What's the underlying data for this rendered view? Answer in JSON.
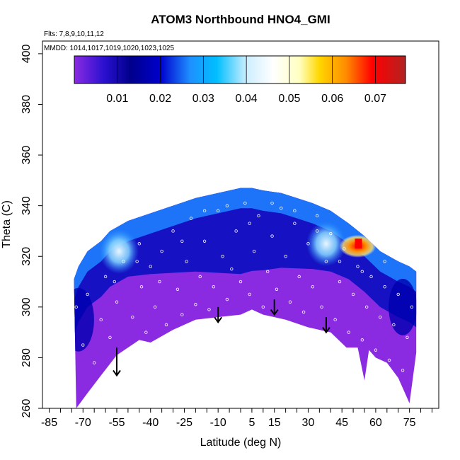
{
  "chart_data": {
    "type": "heatmap",
    "title": "ATOM3 Northbound HNO4_GMI",
    "flights_label": "Flts: 7,8,9,10,11,12",
    "dates_label": "MMDD: 1014,1017,1019,1020,1023,1025",
    "xlabel": "Latitude (deg N)",
    "ylabel": "Theta (C)",
    "xlim": [
      -85,
      85
    ],
    "ylim": [
      260,
      405
    ],
    "xticks": [
      -85,
      -70,
      -55,
      -40,
      -25,
      -10,
      5,
      15,
      30,
      45,
      60,
      75
    ],
    "yticks": [
      260,
      280,
      300,
      320,
      340,
      360,
      380,
      400
    ],
    "colorbar": {
      "range": [
        0.0,
        0.077
      ],
      "ticks": [
        0.01,
        0.02,
        0.03,
        0.04,
        0.05,
        0.06,
        0.07
      ],
      "tick_labels": [
        "0.01",
        "0.02",
        "0.03",
        "0.04",
        "0.05",
        "0.06",
        "0.07"
      ],
      "colors": [
        "#8a2be2",
        "#00008b",
        "#0000cd",
        "#1e90ff",
        "#00bfff",
        "#e0f4ff",
        "#ffffff",
        "#ffffe0",
        "#ffd700",
        "#ff8c00",
        "#ff0000",
        "#b22222"
      ]
    },
    "upper_boundary": [
      [
        -74,
        311
      ],
      [
        -72,
        316
      ],
      [
        -68,
        322
      ],
      [
        -62,
        326
      ],
      [
        -58,
        330
      ],
      [
        -50,
        334
      ],
      [
        -40,
        337
      ],
      [
        -30,
        340
      ],
      [
        -20,
        343
      ],
      [
        -10,
        345
      ],
      [
        0,
        347
      ],
      [
        5,
        347
      ],
      [
        10,
        346
      ],
      [
        18,
        345
      ],
      [
        25,
        343
      ],
      [
        32,
        341
      ],
      [
        40,
        338
      ],
      [
        48,
        333
      ],
      [
        55,
        328
      ],
      [
        62,
        322
      ],
      [
        70,
        318
      ],
      [
        75,
        316
      ],
      [
        78,
        314
      ]
    ],
    "lower_boundary": [
      [
        -73,
        260
      ],
      [
        -68,
        266
      ],
      [
        -62,
        273
      ],
      [
        -55,
        281
      ],
      [
        -45,
        287
      ],
      [
        -40,
        286
      ],
      [
        -30,
        291
      ],
      [
        -20,
        295
      ],
      [
        -10,
        296
      ],
      [
        0,
        297
      ],
      [
        5,
        299
      ],
      [
        10,
        297
      ],
      [
        20,
        295
      ],
      [
        30,
        292
      ],
      [
        40,
        290
      ],
      [
        47,
        284
      ],
      [
        52,
        284
      ],
      [
        55,
        271
      ],
      [
        57,
        283
      ],
      [
        60,
        280
      ],
      [
        65,
        278
      ],
      [
        70,
        272
      ],
      [
        75,
        262
      ]
    ],
    "features": [
      {
        "name": "blue-upper-band",
        "lat_range": [
          -70,
          70
        ],
        "theta_range": [
          315,
          345
        ],
        "value": 0.018
      },
      {
        "name": "light-blue-maximum-south",
        "lat": -54,
        "theta": 322,
        "value": 0.03
      },
      {
        "name": "light-blue-maximum-north",
        "lat": 38,
        "theta": 325,
        "value": 0.032
      },
      {
        "name": "hno4-maximum",
        "lat": 52,
        "theta": 324,
        "value": 0.07
      }
    ],
    "arrows": [
      {
        "lat": -55,
        "theta_top": 284,
        "theta_bottom": 273
      },
      {
        "lat": -10,
        "theta_top": 300,
        "theta_bottom": 294
      },
      {
        "lat": 15,
        "theta_top": 303,
        "theta_bottom": 297
      },
      {
        "lat": 38,
        "theta_top": 296,
        "theta_bottom": 290
      }
    ],
    "sample_points": [
      [
        -73,
        300
      ],
      [
        -70,
        285
      ],
      [
        -68,
        305
      ],
      [
        -65,
        278
      ],
      [
        -62,
        295
      ],
      [
        -60,
        312
      ],
      [
        -58,
        288
      ],
      [
        -55,
        302
      ],
      [
        -52,
        318
      ],
      [
        -50,
        283
      ],
      [
        -48,
        296
      ],
      [
        -45,
        325
      ],
      [
        -44,
        308
      ],
      [
        -42,
        290
      ],
      [
        -40,
        316
      ],
      [
        -38,
        300
      ],
      [
        -35,
        322
      ],
      [
        -33,
        293
      ],
      [
        -30,
        330
      ],
      [
        -28,
        307
      ],
      [
        -26,
        297
      ],
      [
        -24,
        318
      ],
      [
        -22,
        335
      ],
      [
        -20,
        301
      ],
      [
        -18,
        312
      ],
      [
        -16,
        326
      ],
      [
        -14,
        299
      ],
      [
        -12,
        308
      ],
      [
        -10,
        338
      ],
      [
        -8,
        320
      ],
      [
        -6,
        303
      ],
      [
        -4,
        315
      ],
      [
        -2,
        330
      ],
      [
        0,
        310
      ],
      [
        2,
        341
      ],
      [
        4,
        305
      ],
      [
        6,
        322
      ],
      [
        8,
        336
      ],
      [
        10,
        300
      ],
      [
        12,
        314
      ],
      [
        14,
        328
      ],
      [
        16,
        307
      ],
      [
        18,
        339
      ],
      [
        20,
        320
      ],
      [
        22,
        302
      ],
      [
        24,
        333
      ],
      [
        26,
        312
      ],
      [
        28,
        298
      ],
      [
        30,
        325
      ],
      [
        32,
        308
      ],
      [
        34,
        336
      ],
      [
        36,
        300
      ],
      [
        38,
        318
      ],
      [
        40,
        329
      ],
      [
        42,
        295
      ],
      [
        44,
        310
      ],
      [
        46,
        323
      ],
      [
        48,
        290
      ],
      [
        50,
        305
      ],
      [
        52,
        316
      ],
      [
        54,
        287
      ],
      [
        56,
        300
      ],
      [
        58,
        312
      ],
      [
        60,
        283
      ],
      [
        62,
        296
      ],
      [
        64,
        308
      ],
      [
        66,
        279
      ],
      [
        68,
        293
      ],
      [
        70,
        305
      ],
      [
        72,
        275
      ],
      [
        74,
        288
      ],
      [
        76,
        300
      ],
      [
        -56,
        310
      ],
      [
        -46,
        318
      ],
      [
        -36,
        310
      ],
      [
        -26,
        326
      ],
      [
        -16,
        338
      ],
      [
        -6,
        340
      ],
      [
        4,
        333
      ],
      [
        14,
        341
      ],
      [
        24,
        338
      ],
      [
        34,
        330
      ],
      [
        44,
        318
      ],
      [
        54,
        314
      ],
      [
        64,
        318
      ]
    ]
  }
}
